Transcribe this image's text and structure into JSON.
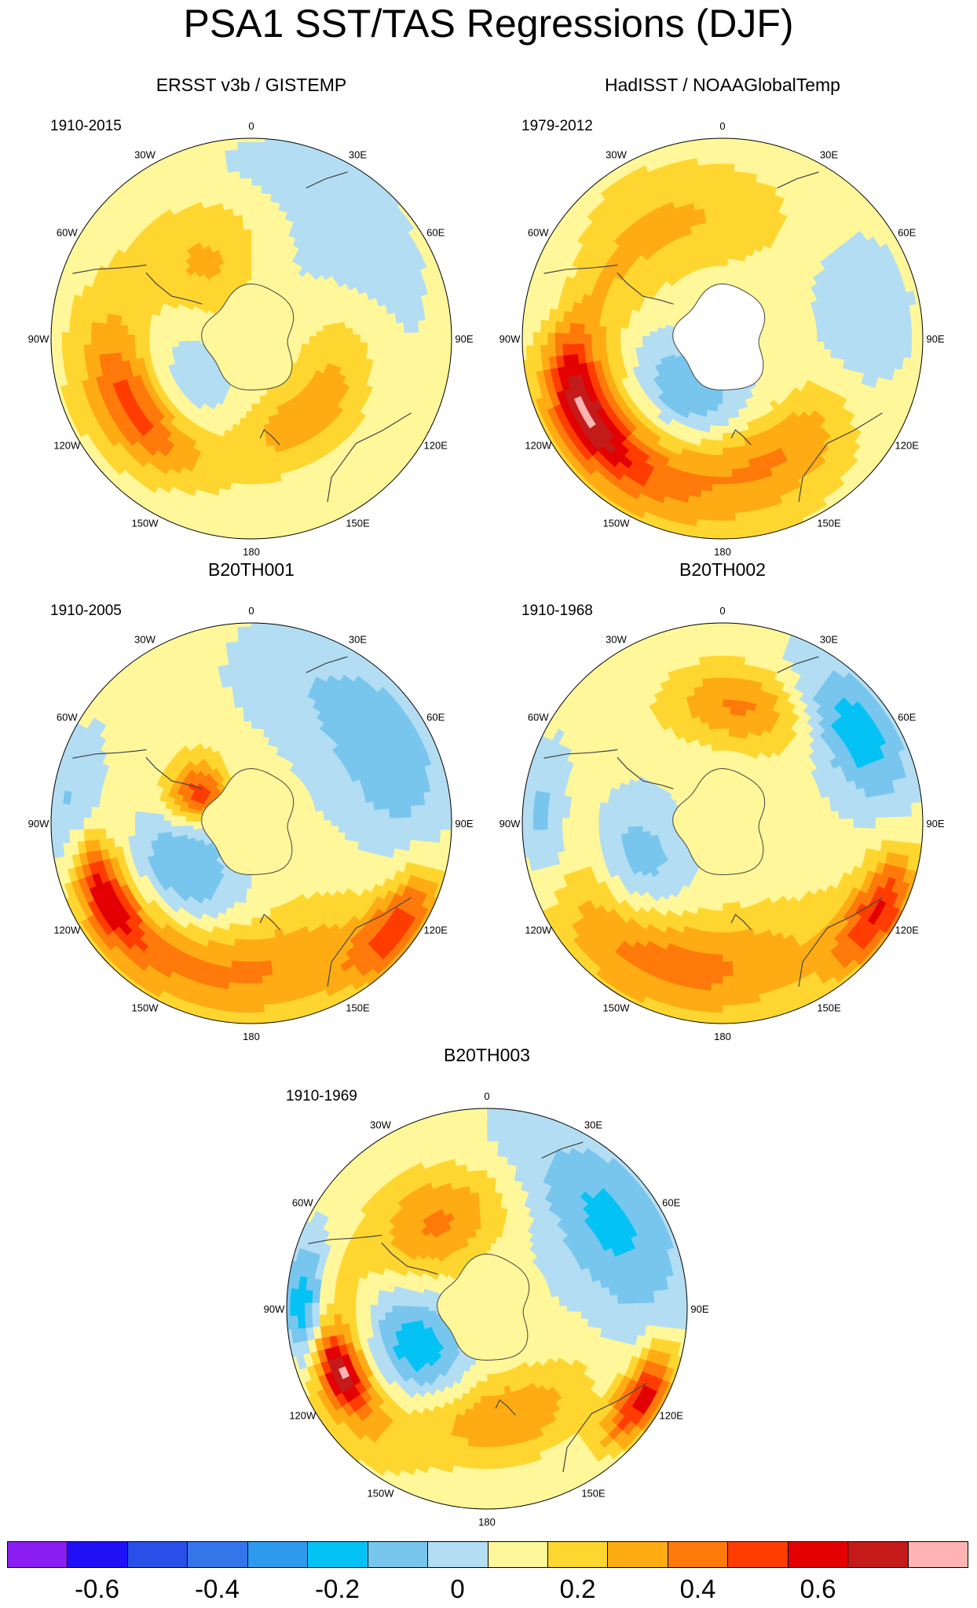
{
  "title": "PSA1 SST/TAS Regressions (DJF)",
  "lon_labels": [
    "0",
    "30E",
    "60E",
    "90E",
    "120E",
    "150E",
    "180",
    "150W",
    "120W",
    "90W",
    "60W",
    "30W"
  ],
  "panels": [
    {
      "title": "ERSST v3b / GISTEMP",
      "years": "1910-2015",
      "blobs": [
        {
          "r": 0.72,
          "a": 250,
          "w": 30,
          "d": 0.18,
          "v": 0.2
        },
        {
          "r": 0.68,
          "a": 235,
          "w": 24,
          "d": 0.1,
          "v": 0.25
        },
        {
          "r": 0.45,
          "a": 330,
          "w": 28,
          "d": 0.22,
          "v": 0.2
        },
        {
          "r": 0.45,
          "a": 110,
          "w": 40,
          "d": 0.16,
          "v": 0.2
        },
        {
          "r": 0.5,
          "a": 165,
          "w": 30,
          "d": 0.15,
          "v": 0.15
        },
        {
          "r": 0.55,
          "a": 60,
          "w": 40,
          "d": 0.2,
          "v": -0.1
        },
        {
          "r": 0.4,
          "a": 230,
          "w": 35,
          "d": 0.15,
          "v": -0.1
        },
        {
          "r": 0.85,
          "a": 20,
          "w": 20,
          "d": 0.1,
          "v": -0.1
        }
      ]
    },
    {
      "title": "HadISST / NOAAGlobalTemp",
      "years": "1979-2012",
      "blobs": [
        {
          "r": 0.75,
          "a": 230,
          "w": 60,
          "d": 0.22,
          "v": 0.3
        },
        {
          "r": 0.78,
          "a": 245,
          "w": 22,
          "d": 0.09,
          "v": 0.45
        },
        {
          "r": 0.35,
          "a": 215,
          "w": 40,
          "d": 0.18,
          "v": -0.25
        },
        {
          "r": 0.85,
          "a": 280,
          "w": 20,
          "d": 0.12,
          "v": -0.2
        },
        {
          "r": 0.7,
          "a": 85,
          "w": 25,
          "d": 0.15,
          "v": -0.15
        },
        {
          "r": 0.6,
          "a": 345,
          "w": 40,
          "d": 0.2,
          "v": 0.15
        },
        {
          "r": 0.6,
          "a": 150,
          "w": 30,
          "d": 0.15,
          "v": 0.2
        }
      ]
    },
    {
      "title": "B20TH001",
      "years": "1910-2005",
      "blobs": [
        {
          "r": 0.75,
          "a": 240,
          "w": 40,
          "d": 0.2,
          "v": 0.3
        },
        {
          "r": 0.82,
          "a": 245,
          "w": 15,
          "d": 0.08,
          "v": 0.45
        },
        {
          "r": 0.5,
          "a": 235,
          "w": 35,
          "d": 0.2,
          "v": -0.35
        },
        {
          "r": 0.88,
          "a": 270,
          "w": 20,
          "d": 0.12,
          "v": -0.3
        },
        {
          "r": 0.3,
          "a": 300,
          "w": 20,
          "d": 0.12,
          "v": 0.45
        },
        {
          "r": 0.75,
          "a": 60,
          "w": 35,
          "d": 0.2,
          "v": -0.2
        },
        {
          "r": 0.9,
          "a": 125,
          "w": 15,
          "d": 0.1,
          "v": 0.4
        },
        {
          "r": 0.7,
          "a": 175,
          "w": 40,
          "d": 0.2,
          "v": 0.25
        }
      ]
    },
    {
      "title": "B20TH002",
      "years": "1910-1968",
      "blobs": [
        {
          "r": 0.75,
          "a": 235,
          "w": 40,
          "d": 0.2,
          "v": 0.3
        },
        {
          "r": 0.55,
          "a": 245,
          "w": 30,
          "d": 0.2,
          "v": -0.3
        },
        {
          "r": 0.9,
          "a": 270,
          "w": 18,
          "d": 0.1,
          "v": -0.25
        },
        {
          "r": 0.6,
          "a": 10,
          "w": 25,
          "d": 0.15,
          "v": 0.3
        },
        {
          "r": 0.8,
          "a": 55,
          "w": 20,
          "d": 0.15,
          "v": -0.3
        },
        {
          "r": 0.9,
          "a": 120,
          "w": 15,
          "d": 0.1,
          "v": 0.45
        },
        {
          "r": 0.7,
          "a": 180,
          "w": 40,
          "d": 0.2,
          "v": 0.2
        }
      ]
    },
    {
      "title": "B20TH003",
      "years": "1910-1969",
      "blobs": [
        {
          "r": 0.75,
          "a": 245,
          "w": 28,
          "d": 0.18,
          "v": 0.35
        },
        {
          "r": 0.8,
          "a": 247,
          "w": 10,
          "d": 0.07,
          "v": 0.5
        },
        {
          "r": 0.48,
          "a": 240,
          "w": 30,
          "d": 0.2,
          "v": -0.4
        },
        {
          "r": 0.92,
          "a": 270,
          "w": 15,
          "d": 0.08,
          "v": -0.4
        },
        {
          "r": 0.5,
          "a": 330,
          "w": 30,
          "d": 0.18,
          "v": 0.3
        },
        {
          "r": 0.75,
          "a": 55,
          "w": 30,
          "d": 0.2,
          "v": -0.25
        },
        {
          "r": 0.9,
          "a": 120,
          "w": 12,
          "d": 0.08,
          "v": 0.55
        },
        {
          "r": 0.55,
          "a": 175,
          "w": 35,
          "d": 0.15,
          "v": 0.3
        }
      ]
    }
  ],
  "colorbar": {
    "colors": [
      "#8a1ef0",
      "#1f10f5",
      "#2850e8",
      "#3575ea",
      "#2d9aed",
      "#05c2f5",
      "#78c6ee",
      "#b3ddf2",
      "#fff79a",
      "#ffd630",
      "#ffac14",
      "#ff7a0a",
      "#ff3d00",
      "#e30000",
      "#c41a1a",
      "#ffb3b3"
    ],
    "levels": [
      -0.7,
      -0.6,
      -0.5,
      -0.4,
      -0.3,
      -0.2,
      -0.1,
      0,
      0.1,
      0.2,
      0.3,
      0.4,
      0.5,
      0.6,
      0.7
    ],
    "tick_labels": [
      "-0.6",
      "-0.4",
      "-0.2",
      "0",
      "0.2",
      "0.4",
      "0.6"
    ]
  }
}
